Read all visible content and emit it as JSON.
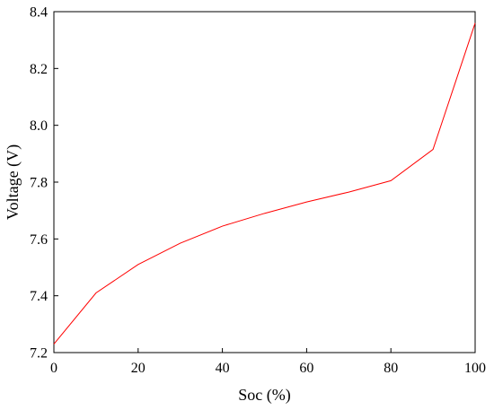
{
  "chart_data": {
    "type": "line",
    "title": "",
    "xlabel": "Soc (%)",
    "ylabel": "Voltage (V)",
    "xlim": [
      0,
      100
    ],
    "ylim": [
      7.2,
      8.4
    ],
    "xticks": [
      0,
      20,
      40,
      60,
      80,
      100
    ],
    "yticks": [
      7.2,
      7.4,
      7.6,
      7.8,
      8.0,
      8.2,
      8.4
    ],
    "xtick_labels": [
      "0",
      "20",
      "40",
      "60",
      "80",
      "100"
    ],
    "ytick_labels": [
      "7.2",
      "7.4",
      "7.6",
      "7.8",
      "8.0",
      "8.2",
      "8.4"
    ],
    "grid": false,
    "legend": "none",
    "series": [
      {
        "color": "#ff0000",
        "x": [
          0,
          10,
          20,
          30,
          40,
          50,
          60,
          70,
          80,
          90,
          100
        ],
        "y": [
          7.23,
          7.41,
          7.51,
          7.585,
          7.645,
          7.69,
          7.73,
          7.765,
          7.805,
          7.915,
          8.36
        ]
      }
    ]
  }
}
